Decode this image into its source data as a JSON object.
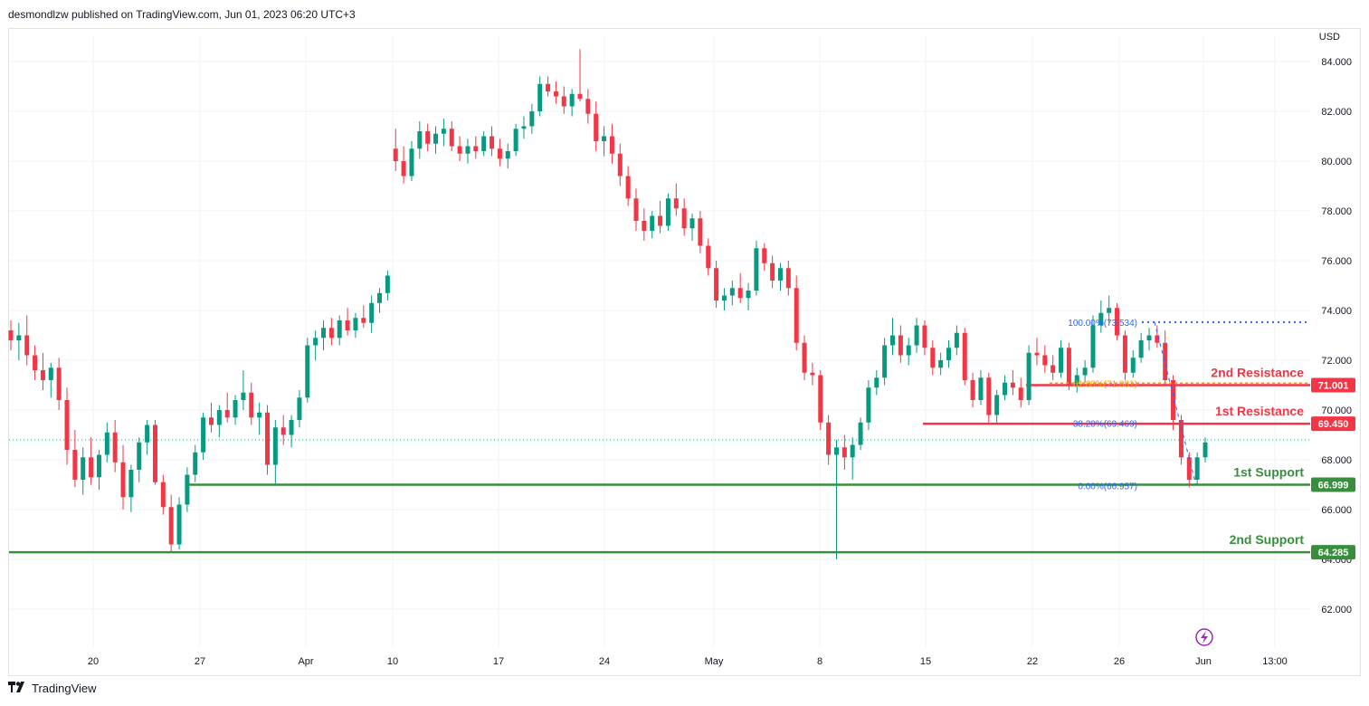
{
  "header": {
    "publisher": "desmondlzw published on TradingView.com, Jun 01, 2023 06:20 UTC+3"
  },
  "footer": {
    "brand": "TradingView",
    "logo_icon": "tradingview-logo-icon"
  },
  "chart_data": {
    "type": "candlestick",
    "currency_label": "USD",
    "y_ticks": [
      "84.000",
      "82.000",
      "80.000",
      "78.000",
      "76.000",
      "74.000",
      "72.000",
      "70.000",
      "68.000",
      "66.000",
      "64.000",
      "62.000"
    ],
    "x_ticks": [
      "20",
      "27",
      "Apr",
      "10",
      "17",
      "24",
      "May",
      "8",
      "15",
      "22",
      "26",
      "Jun",
      "13:00"
    ],
    "ylim": [
      61.2,
      85.0
    ],
    "last_price": 68.8,
    "levels": [
      {
        "label": "2nd Resistance",
        "value": 71.001,
        "price_tag": "71.001",
        "color": "#f23645",
        "style": "solid"
      },
      {
        "label": "1st Resistance",
        "value": 69.45,
        "price_tag": "69.450",
        "color": "#f23645",
        "style": "solid"
      },
      {
        "label": "1st Support",
        "value": 66.999,
        "price_tag": "66.999",
        "color": "#388e3c",
        "style": "solid"
      },
      {
        "label": "2nd Support",
        "value": 64.285,
        "price_tag": "64.285",
        "color": "#388e3c",
        "style": "solid"
      }
    ],
    "fibonacci": [
      {
        "label": "100.00%(73.534)",
        "value": 73.534,
        "color": "#2962ff"
      },
      {
        "label": "61.80%(71.081)",
        "value": 71.081,
        "color": "#ff9800"
      },
      {
        "label": "38.20%(69.469)",
        "value": 69.469,
        "color": "#2962ff"
      },
      {
        "label": "0.00%(66.957)",
        "value": 66.957,
        "color": "#2962ff"
      }
    ],
    "colors": {
      "up": "#089981",
      "down": "#f23645",
      "grid": "#f0f3fa",
      "axis_text": "#131722"
    },
    "candles": [
      [
        73.2,
        73.6,
        72.4,
        72.8
      ],
      [
        72.8,
        73.5,
        72.0,
        73.0
      ],
      [
        73.0,
        73.8,
        71.8,
        72.2
      ],
      [
        72.2,
        72.6,
        71.2,
        71.6
      ],
      [
        71.6,
        72.3,
        70.8,
        71.2
      ],
      [
        71.2,
        71.9,
        70.5,
        71.7
      ],
      [
        71.7,
        72.1,
        70.0,
        70.4
      ],
      [
        70.4,
        70.9,
        67.8,
        68.4
      ],
      [
        68.4,
        69.2,
        66.9,
        67.2
      ],
      [
        67.2,
        68.5,
        66.6,
        68.1
      ],
      [
        68.1,
        68.9,
        67.0,
        67.3
      ],
      [
        67.3,
        68.4,
        66.8,
        68.2
      ],
      [
        68.2,
        69.5,
        67.9,
        69.1
      ],
      [
        69.1,
        69.6,
        67.5,
        67.9
      ],
      [
        67.9,
        68.6,
        66.0,
        66.5
      ],
      [
        66.5,
        67.8,
        65.9,
        67.6
      ],
      [
        67.6,
        68.9,
        67.1,
        68.7
      ],
      [
        68.7,
        69.6,
        68.2,
        69.4
      ],
      [
        69.4,
        69.6,
        67.0,
        67.1
      ],
      [
        67.1,
        67.4,
        65.8,
        66.1
      ],
      [
        66.1,
        66.6,
        64.3,
        64.6
      ],
      [
        64.6,
        66.5,
        64.4,
        66.2
      ],
      [
        66.2,
        67.7,
        65.9,
        67.4
      ],
      [
        67.4,
        68.6,
        67.1,
        68.3
      ],
      [
        68.3,
        69.9,
        68.0,
        69.7
      ],
      [
        69.7,
        70.3,
        69.1,
        69.4
      ],
      [
        69.4,
        70.2,
        68.9,
        70.0
      ],
      [
        70.0,
        70.7,
        69.5,
        69.7
      ],
      [
        69.7,
        70.6,
        69.4,
        70.4
      ],
      [
        70.4,
        71.6,
        70.0,
        70.7
      ],
      [
        70.7,
        71.1,
        69.4,
        69.7
      ],
      [
        69.7,
        70.3,
        69.0,
        69.9
      ],
      [
        69.9,
        70.2,
        67.4,
        67.8
      ],
      [
        67.8,
        69.6,
        67.0,
        69.3
      ],
      [
        69.3,
        69.8,
        68.6,
        69.0
      ],
      [
        69.0,
        69.8,
        68.5,
        69.6
      ],
      [
        69.6,
        70.8,
        69.3,
        70.5
      ],
      [
        70.5,
        72.9,
        70.3,
        72.6
      ],
      [
        72.6,
        73.2,
        72.0,
        72.9
      ],
      [
        72.9,
        73.6,
        72.4,
        73.3
      ],
      [
        73.3,
        73.7,
        72.6,
        72.9
      ],
      [
        72.9,
        73.8,
        72.6,
        73.6
      ],
      [
        73.6,
        74.1,
        73.0,
        73.2
      ],
      [
        73.2,
        73.9,
        72.9,
        73.7
      ],
      [
        73.7,
        74.2,
        73.3,
        73.5
      ],
      [
        73.5,
        74.6,
        73.1,
        74.3
      ],
      [
        74.3,
        74.9,
        73.9,
        74.7
      ],
      [
        74.7,
        75.6,
        74.4,
        75.4
      ],
      [
        80.5,
        81.3,
        79.6,
        80.0
      ],
      [
        80.0,
        80.6,
        79.1,
        79.4
      ],
      [
        79.4,
        80.8,
        79.2,
        80.5
      ],
      [
        80.5,
        81.6,
        80.1,
        81.2
      ],
      [
        81.2,
        81.5,
        80.4,
        80.7
      ],
      [
        80.7,
        81.4,
        80.3,
        81.1
      ],
      [
        81.1,
        81.7,
        80.6,
        81.3
      ],
      [
        81.3,
        81.6,
        80.4,
        80.6
      ],
      [
        80.6,
        81.0,
        80.0,
        80.3
      ],
      [
        80.3,
        80.9,
        79.9,
        80.6
      ],
      [
        80.6,
        81.0,
        80.1,
        80.4
      ],
      [
        80.4,
        81.2,
        80.2,
        81.0
      ],
      [
        81.0,
        81.4,
        80.2,
        80.5
      ],
      [
        80.5,
        80.9,
        79.8,
        80.1
      ],
      [
        80.1,
        80.7,
        79.7,
        80.4
      ],
      [
        80.4,
        81.5,
        80.2,
        81.3
      ],
      [
        81.3,
        81.8,
        80.9,
        81.4
      ],
      [
        81.4,
        82.3,
        81.1,
        82.0
      ],
      [
        82.0,
        83.4,
        81.8,
        83.1
      ],
      [
        83.1,
        83.4,
        82.6,
        82.8
      ],
      [
        82.8,
        83.2,
        82.3,
        82.6
      ],
      [
        82.6,
        83.0,
        81.9,
        82.2
      ],
      [
        82.2,
        82.9,
        81.8,
        82.7
      ],
      [
        82.7,
        84.5,
        82.4,
        82.5
      ],
      [
        82.5,
        82.9,
        81.5,
        81.9
      ],
      [
        81.9,
        82.4,
        80.4,
        80.8
      ],
      [
        80.8,
        81.4,
        80.2,
        81.0
      ],
      [
        81.0,
        81.5,
        79.9,
        80.3
      ],
      [
        80.3,
        80.7,
        79.0,
        79.4
      ],
      [
        79.4,
        79.8,
        78.2,
        78.5
      ],
      [
        78.5,
        78.9,
        77.2,
        77.6
      ],
      [
        77.6,
        78.1,
        76.8,
        77.2
      ],
      [
        77.2,
        78.0,
        76.9,
        77.8
      ],
      [
        77.8,
        78.4,
        77.1,
        77.4
      ],
      [
        77.4,
        78.7,
        77.2,
        78.5
      ],
      [
        78.5,
        79.1,
        77.8,
        78.1
      ],
      [
        78.1,
        78.5,
        77.0,
        77.3
      ],
      [
        77.3,
        77.9,
        76.8,
        77.7
      ],
      [
        77.7,
        78.0,
        76.3,
        76.6
      ],
      [
        76.6,
        76.9,
        75.4,
        75.7
      ],
      [
        75.7,
        76.0,
        74.1,
        74.4
      ],
      [
        74.4,
        74.9,
        74.0,
        74.6
      ],
      [
        74.6,
        75.2,
        74.2,
        74.9
      ],
      [
        74.9,
        75.5,
        74.3,
        74.5
      ],
      [
        74.5,
        75.1,
        74.0,
        74.8
      ],
      [
        74.8,
        76.8,
        74.6,
        76.5
      ],
      [
        76.5,
        76.7,
        75.6,
        75.9
      ],
      [
        75.9,
        76.2,
        74.9,
        75.2
      ],
      [
        75.2,
        75.9,
        74.8,
        75.7
      ],
      [
        75.7,
        76.0,
        74.6,
        74.9
      ],
      [
        74.9,
        75.4,
        72.4,
        72.7
      ],
      [
        72.7,
        73.0,
        71.2,
        71.5
      ],
      [
        71.5,
        71.9,
        71.0,
        71.4
      ],
      [
        71.4,
        71.6,
        69.2,
        69.5
      ],
      [
        69.5,
        69.8,
        67.8,
        68.2
      ],
      [
        68.2,
        68.8,
        64.0,
        68.5
      ],
      [
        68.5,
        69.0,
        67.6,
        68.1
      ],
      [
        68.1,
        68.9,
        67.2,
        68.6
      ],
      [
        68.6,
        69.7,
        68.4,
        69.5
      ],
      [
        69.5,
        71.2,
        69.2,
        70.9
      ],
      [
        70.9,
        71.6,
        70.6,
        71.3
      ],
      [
        71.3,
        72.9,
        71.0,
        72.6
      ],
      [
        72.6,
        73.7,
        72.2,
        73.0
      ],
      [
        73.0,
        73.4,
        71.9,
        72.2
      ],
      [
        72.2,
        72.9,
        71.8,
        72.6
      ],
      [
        72.6,
        73.7,
        72.3,
        73.4
      ],
      [
        73.4,
        73.6,
        72.2,
        72.5
      ],
      [
        72.5,
        72.8,
        71.4,
        71.7
      ],
      [
        71.7,
        72.3,
        71.4,
        72.0
      ],
      [
        72.0,
        72.8,
        71.7,
        72.5
      ],
      [
        72.5,
        73.4,
        72.2,
        73.1
      ],
      [
        73.1,
        73.3,
        71.0,
        71.2
      ],
      [
        71.2,
        71.5,
        70.1,
        70.4
      ],
      [
        70.4,
        71.6,
        70.2,
        71.3
      ],
      [
        71.3,
        71.5,
        69.4,
        69.8
      ],
      [
        69.8,
        70.8,
        69.5,
        70.6
      ],
      [
        70.6,
        71.4,
        70.4,
        71.1
      ],
      [
        71.1,
        71.6,
        70.6,
        70.9
      ],
      [
        70.9,
        71.3,
        70.1,
        70.4
      ],
      [
        70.4,
        72.6,
        70.2,
        72.3
      ],
      [
        72.3,
        72.9,
        71.8,
        72.2
      ],
      [
        72.2,
        72.6,
        71.5,
        71.8
      ],
      [
        71.8,
        72.2,
        71.2,
        71.5
      ],
      [
        71.5,
        72.8,
        71.3,
        72.5
      ],
      [
        72.5,
        72.7,
        70.8,
        71.0
      ],
      [
        71.0,
        71.7,
        70.7,
        71.4
      ],
      [
        71.4,
        72.0,
        71.1,
        71.7
      ],
      [
        71.7,
        73.8,
        71.5,
        73.4
      ],
      [
        73.4,
        74.4,
        73.1,
        73.9
      ],
      [
        73.9,
        74.6,
        73.5,
        74.1
      ],
      [
        74.1,
        74.3,
        72.8,
        73.0
      ],
      [
        73.0,
        73.2,
        71.2,
        71.5
      ],
      [
        71.5,
        72.4,
        71.3,
        72.1
      ],
      [
        72.1,
        73.1,
        71.9,
        72.8
      ],
      [
        72.8,
        73.3,
        72.4,
        73.0
      ],
      [
        73.0,
        73.4,
        72.5,
        72.7
      ],
      [
        72.7,
        73.2,
        71.0,
        71.2
      ],
      [
        71.2,
        71.4,
        69.2,
        69.6
      ],
      [
        69.6,
        69.8,
        67.8,
        68.1
      ],
      [
        68.1,
        68.3,
        66.9,
        67.2
      ],
      [
        67.2,
        68.3,
        67.0,
        68.1
      ],
      [
        68.1,
        68.9,
        67.9,
        68.7
      ]
    ]
  }
}
